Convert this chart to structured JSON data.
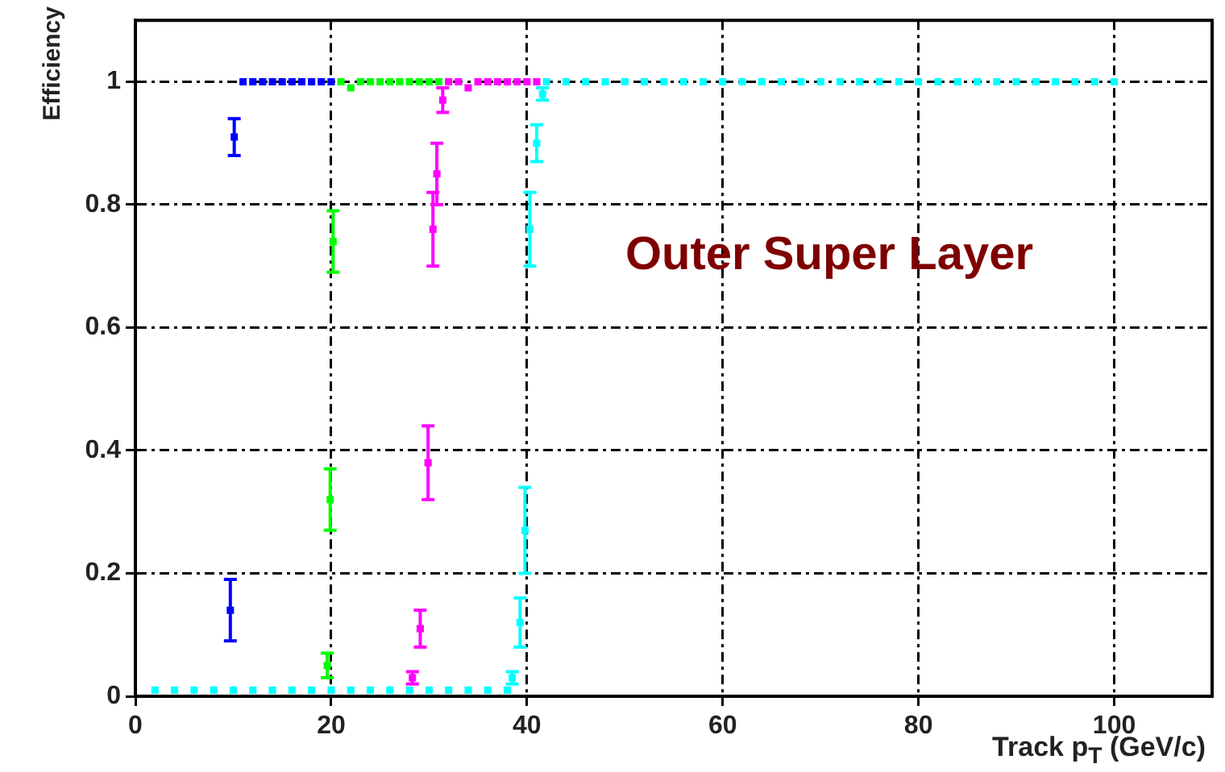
{
  "chart_data": {
    "type": "scatter",
    "xlabel": "Track p$_{T}$ (GeV/c)",
    "ylabel": "Efficiency",
    "annotations": [
      "Outer Super Layer"
    ],
    "xlim": [
      0,
      110
    ],
    "ylim": [
      0,
      1.1
    ],
    "xticks": [
      0,
      20,
      40,
      60,
      80,
      100
    ],
    "yticks": [
      0,
      0.2,
      0.4,
      0.6,
      0.8,
      1
    ],
    "grid": true,
    "legend": false,
    "marker": "square",
    "series": [
      {
        "color": "#0000ff",
        "x": [
          9.7,
          10.1,
          11,
          12,
          13,
          14,
          15,
          16,
          17,
          18,
          19,
          20
        ],
        "values": [
          0.14,
          0.91,
          1,
          1,
          1,
          1,
          1,
          1,
          1,
          1,
          1,
          1
        ],
        "errors": [
          0.05,
          0.03,
          null,
          null,
          null,
          null,
          null,
          null,
          null,
          null,
          null,
          null
        ]
      },
      {
        "color": "#00ff00",
        "x": [
          19.6,
          19.9,
          20.2,
          21,
          22,
          23,
          24,
          25,
          26,
          27,
          28,
          29,
          30,
          31
        ],
        "values": [
          0.05,
          0.32,
          0.74,
          1,
          0.99,
          1,
          1,
          1,
          1,
          1,
          1,
          1,
          1,
          1
        ],
        "errors": [
          0.02,
          0.05,
          0.05,
          null,
          null,
          null,
          null,
          null,
          null,
          null,
          null,
          null,
          null,
          null
        ]
      },
      {
        "color": "#ff00ff",
        "x": [
          28.3,
          29.1,
          29.9,
          30.4,
          30.8,
          31.4,
          32,
          33,
          34,
          35,
          36,
          37,
          38,
          39,
          40,
          41
        ],
        "values": [
          0.03,
          0.11,
          0.38,
          0.76,
          0.85,
          0.97,
          1,
          1,
          0.99,
          1,
          1,
          1,
          1,
          1,
          1,
          1
        ],
        "errors": [
          0.01,
          0.03,
          0.06,
          0.06,
          0.05,
          0.02,
          null,
          null,
          null,
          null,
          null,
          null,
          null,
          null,
          null,
          null
        ]
      },
      {
        "color": "#00ffff",
        "x": [
          2,
          4,
          6,
          8,
          10,
          12,
          14,
          16,
          18,
          20,
          22,
          24,
          26,
          28,
          30,
          32,
          34,
          36,
          38,
          38.5,
          39.3,
          39.8,
          40.3,
          41,
          41.6,
          42,
          44,
          46,
          48,
          50,
          52,
          54,
          56,
          58,
          60,
          62,
          64,
          66,
          68,
          70,
          72,
          74,
          76,
          78,
          80,
          82,
          84,
          86,
          88,
          90,
          92,
          94,
          96,
          98,
          100
        ],
        "values": [
          0.01,
          0.01,
          0.01,
          0.01,
          0.01,
          0.01,
          0.01,
          0.01,
          0.01,
          0.01,
          0.01,
          0.01,
          0.01,
          0.01,
          0.01,
          0.01,
          0.01,
          0.01,
          0.01,
          0.03,
          0.12,
          0.27,
          0.76,
          0.9,
          0.98,
          1,
          1,
          1,
          1,
          1,
          1,
          1,
          1,
          1,
          1,
          1,
          1,
          1,
          1,
          1,
          1,
          1,
          1,
          1,
          1,
          1,
          1,
          1,
          1,
          1,
          1,
          1,
          1,
          1,
          1
        ],
        "errors": [
          null,
          null,
          null,
          null,
          null,
          null,
          null,
          null,
          null,
          null,
          null,
          null,
          null,
          null,
          null,
          null,
          null,
          null,
          null,
          0.01,
          0.04,
          0.07,
          0.06,
          0.03,
          0.01,
          null,
          null,
          null,
          null,
          null,
          null,
          null,
          null,
          null,
          null,
          null,
          null,
          null,
          null,
          null,
          null,
          null,
          null,
          null,
          null,
          null,
          null,
          null,
          null,
          null,
          null,
          null,
          null,
          null,
          null
        ]
      }
    ]
  }
}
